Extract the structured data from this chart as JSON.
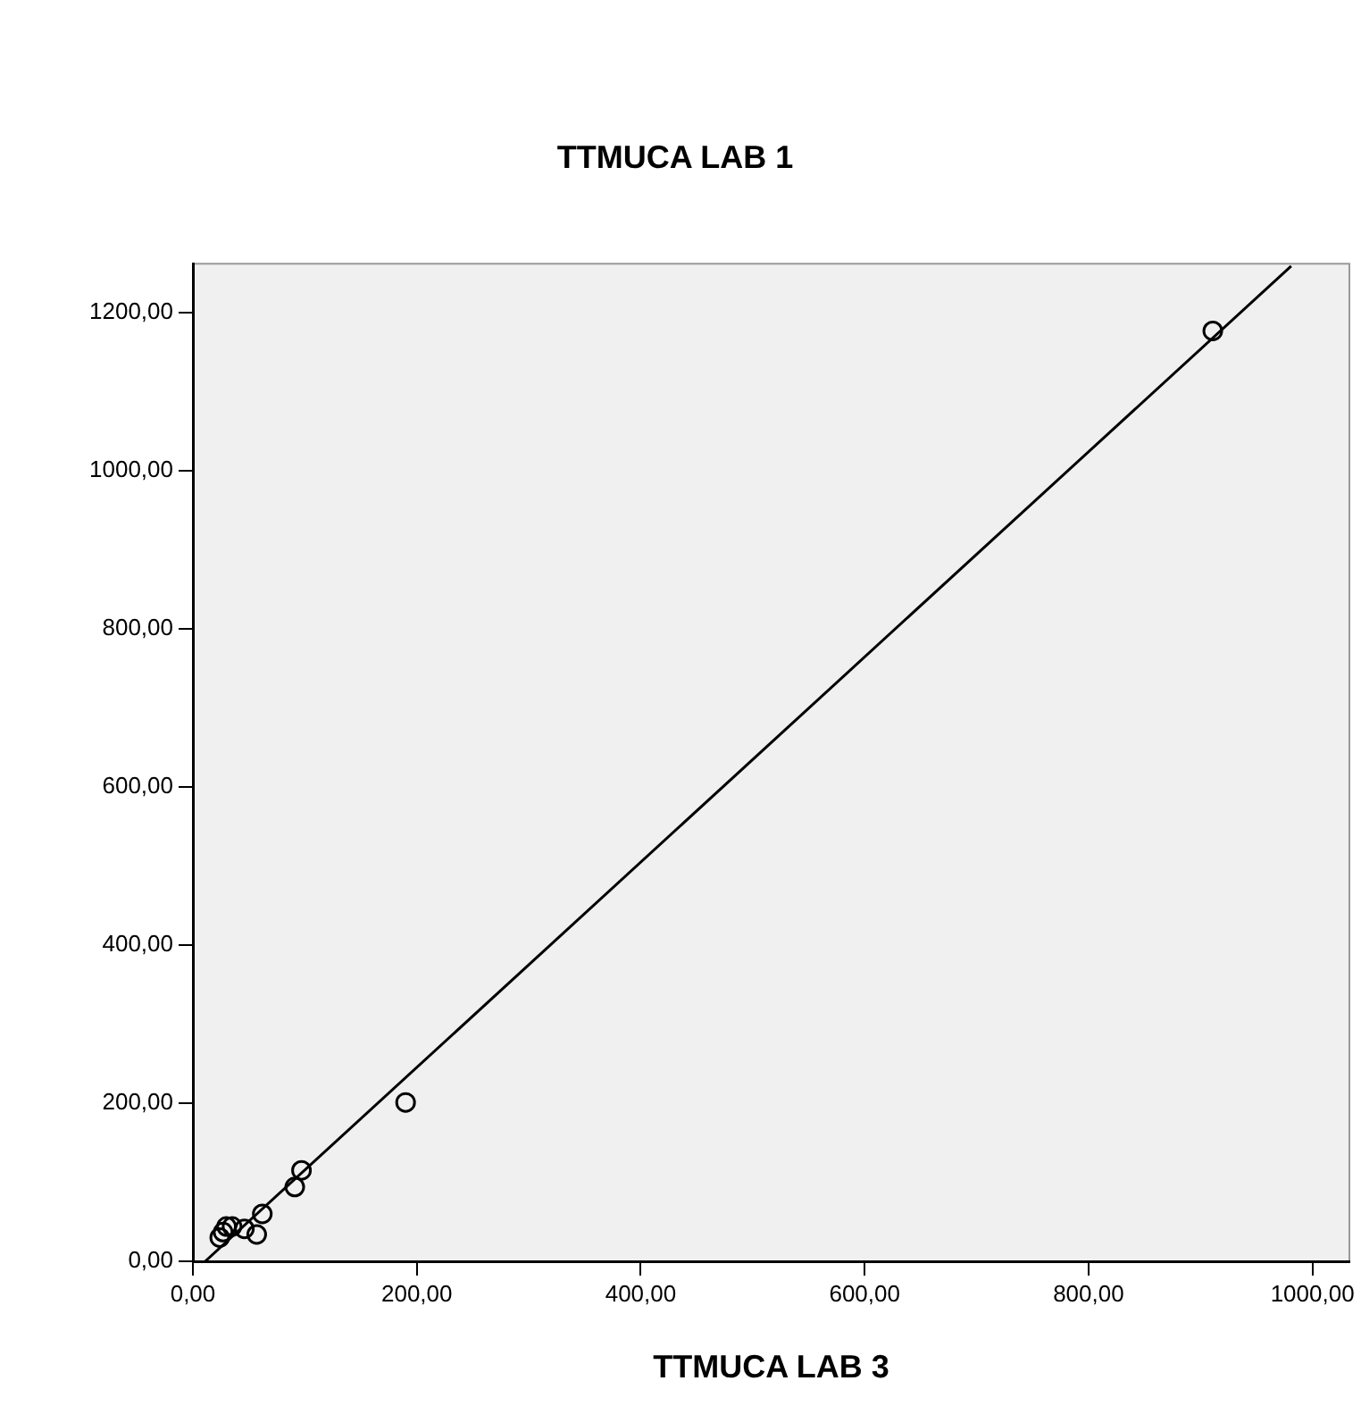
{
  "chart_data": {
    "type": "scatter",
    "title": "TTMUCA LAB 1",
    "xlabel": "TTMUCA LAB 3",
    "series": [
      {
        "color": "#000000",
        "marker": "circle",
        "x": [
          911,
          190,
          97,
          91,
          62,
          57,
          30,
          24,
          46,
          35,
          27
        ],
        "values": [
          1177,
          201,
          115,
          94,
          60,
          34,
          44,
          30,
          41,
          44,
          37
        ]
      },
      {
        "type": "line",
        "color": "#000000",
        "marker": "none",
        "line_style": "solid",
        "x": [
          11,
          981
        ],
        "values": [
          0,
          1259
        ]
      }
    ],
    "xlim": [
      0,
      1033
    ],
    "ylim": [
      0,
      1262
    ],
    "xticks": [
      {
        "value": 0,
        "label": "0,00"
      },
      {
        "value": 200,
        "label": "200,00"
      },
      {
        "value": 400,
        "label": "400,00"
      },
      {
        "value": 600,
        "label": "600,00"
      },
      {
        "value": 800,
        "label": "800,00"
      },
      {
        "value": 1000,
        "label": "1000,00"
      }
    ],
    "yticks": [
      {
        "value": 0,
        "label": "0,00"
      },
      {
        "value": 200,
        "label": "200,00"
      },
      {
        "value": 400,
        "label": "400,00"
      },
      {
        "value": 600,
        "label": "600,00"
      },
      {
        "value": 800,
        "label": "800,00"
      },
      {
        "value": 1000,
        "label": "1000,00"
      },
      {
        "value": 1200,
        "label": "1200,00"
      }
    ],
    "grid": false,
    "legend": false
  }
}
